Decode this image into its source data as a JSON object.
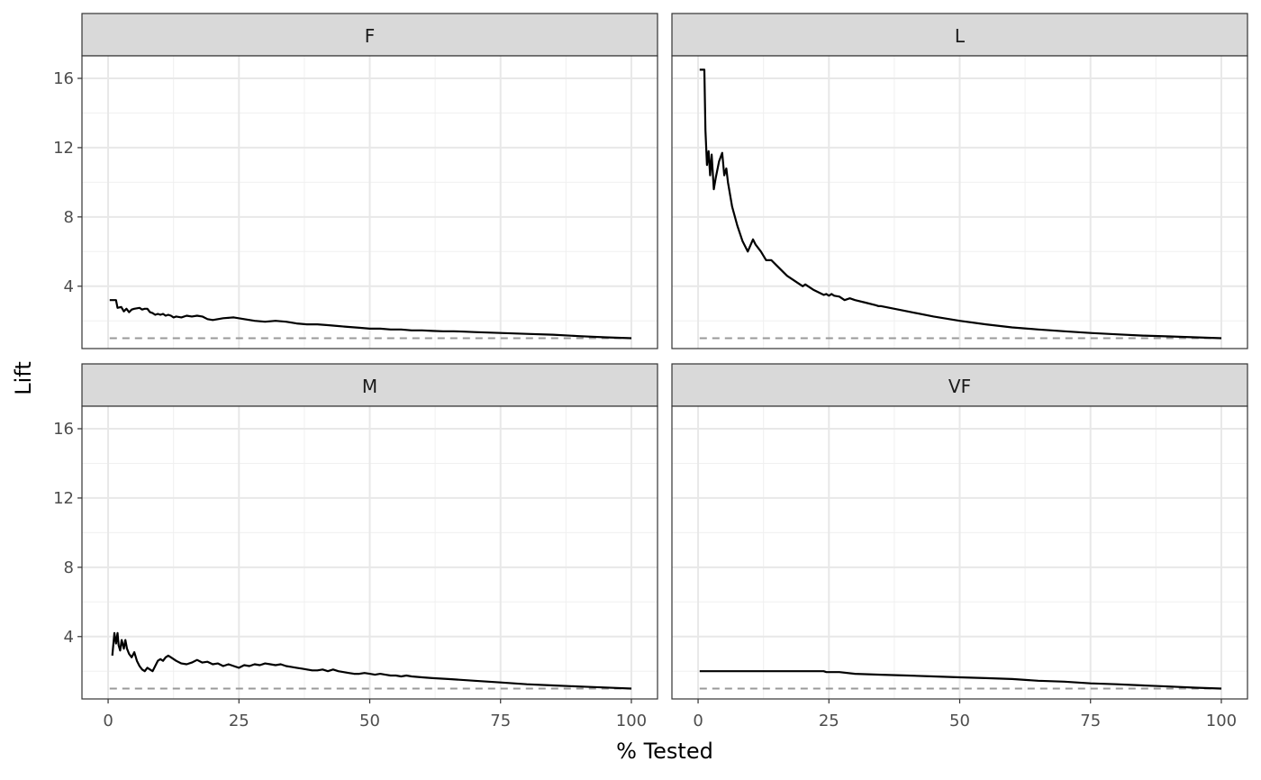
{
  "chart_data": {
    "type": "line",
    "layout": "facet-grid-2x2",
    "xlabel": "% Tested",
    "ylabel": "Lift",
    "xlim": [
      -5,
      105
    ],
    "ylim": [
      0.4,
      17.3
    ],
    "x_ticks": [
      0,
      25,
      50,
      75,
      100
    ],
    "x_tick_labels": [
      "0",
      "25",
      "50",
      "75",
      "100"
    ],
    "y_ticks": [
      4,
      8,
      12,
      16
    ],
    "y_tick_labels": [
      "4",
      "8",
      "12",
      "16"
    ],
    "grid": true,
    "baseline": {
      "y": 1,
      "style": "dashed",
      "color": "#999999"
    },
    "line_color": "#000000",
    "panels": [
      {
        "label": "F",
        "x": [
          0.3,
          1.5,
          1.8,
          2.5,
          3.0,
          3.5,
          4.0,
          4.5,
          5.0,
          6.0,
          6.5,
          7.0,
          7.5,
          8.0,
          8.5,
          9.0,
          9.5,
          10,
          10.5,
          11,
          11.5,
          12,
          12.5,
          13,
          14,
          15,
          16,
          17,
          18,
          19,
          20,
          22,
          24,
          26,
          28,
          30,
          32,
          34,
          36,
          38,
          40,
          42,
          44,
          46,
          48,
          50,
          52,
          54,
          56,
          58,
          60,
          62,
          64,
          66,
          68,
          70,
          75,
          80,
          85,
          90,
          95,
          100
        ],
        "y": [
          3.2,
          3.2,
          2.75,
          2.8,
          2.55,
          2.7,
          2.5,
          2.65,
          2.7,
          2.75,
          2.65,
          2.7,
          2.7,
          2.5,
          2.45,
          2.35,
          2.4,
          2.35,
          2.4,
          2.3,
          2.35,
          2.3,
          2.2,
          2.25,
          2.2,
          2.3,
          2.25,
          2.3,
          2.25,
          2.1,
          2.05,
          2.15,
          2.2,
          2.1,
          2.0,
          1.95,
          2.0,
          1.95,
          1.85,
          1.8,
          1.8,
          1.75,
          1.7,
          1.65,
          1.6,
          1.55,
          1.55,
          1.5,
          1.5,
          1.45,
          1.45,
          1.42,
          1.4,
          1.4,
          1.38,
          1.35,
          1.3,
          1.25,
          1.2,
          1.12,
          1.05,
          1.0
        ]
      },
      {
        "label": "L",
        "x": [
          0.3,
          1.2,
          1.4,
          1.7,
          2.0,
          2.3,
          2.6,
          3.0,
          3.4,
          4.0,
          4.6,
          5.0,
          5.4,
          5.7,
          6.5,
          7.5,
          8.5,
          9.5,
          10.5,
          11,
          12,
          13,
          14,
          15,
          17,
          20,
          20.5,
          22,
          24,
          24.5,
          25,
          25.5,
          26,
          27,
          28,
          29,
          30,
          32,
          34,
          34.5,
          35,
          40,
          45,
          50,
          55,
          60,
          65,
          70,
          75,
          80,
          85,
          90,
          95,
          100
        ],
        "y": [
          16.5,
          16.5,
          13.0,
          11.0,
          11.8,
          10.4,
          11.6,
          9.6,
          10.3,
          11.2,
          11.7,
          10.4,
          10.8,
          10.0,
          8.6,
          7.5,
          6.6,
          6.0,
          6.7,
          6.4,
          6.0,
          5.5,
          5.5,
          5.2,
          4.6,
          4.0,
          4.1,
          3.8,
          3.5,
          3.55,
          3.45,
          3.55,
          3.45,
          3.4,
          3.2,
          3.3,
          3.2,
          3.05,
          2.9,
          2.85,
          2.85,
          2.55,
          2.25,
          2.0,
          1.8,
          1.62,
          1.5,
          1.4,
          1.3,
          1.22,
          1.15,
          1.1,
          1.05,
          1.0
        ]
      },
      {
        "label": "M",
        "x": [
          0.8,
          1.2,
          1.5,
          1.8,
          2.0,
          2.3,
          2.6,
          3.0,
          3.3,
          3.6,
          4.0,
          4.5,
          5.0,
          5.5,
          6.0,
          6.5,
          7.0,
          7.5,
          8.0,
          8.5,
          9.0,
          9.5,
          10,
          10.5,
          11,
          11.5,
          12,
          13,
          14,
          15,
          16,
          17,
          18,
          19,
          20,
          21,
          22,
          23,
          24,
          25,
          26,
          27,
          28,
          29,
          30,
          31,
          32,
          33,
          34,
          35,
          36,
          37,
          38,
          39,
          40,
          41,
          42,
          43,
          44,
          45,
          46,
          47,
          48,
          49,
          50,
          51,
          52,
          53,
          54,
          55,
          56,
          57,
          58,
          60,
          62,
          65,
          70,
          75,
          80,
          85,
          90,
          95,
          100
        ],
        "y": [
          2.9,
          4.2,
          3.6,
          4.2,
          3.5,
          3.2,
          3.8,
          3.3,
          3.8,
          3.3,
          3.0,
          2.8,
          3.1,
          2.6,
          2.3,
          2.1,
          2.0,
          2.2,
          2.1,
          2.0,
          2.3,
          2.6,
          2.7,
          2.6,
          2.8,
          2.9,
          2.8,
          2.6,
          2.45,
          2.4,
          2.5,
          2.65,
          2.5,
          2.55,
          2.4,
          2.45,
          2.3,
          2.4,
          2.3,
          2.2,
          2.35,
          2.3,
          2.4,
          2.35,
          2.45,
          2.4,
          2.35,
          2.4,
          2.3,
          2.25,
          2.2,
          2.15,
          2.1,
          2.05,
          2.05,
          2.1,
          2.0,
          2.1,
          2.0,
          1.95,
          1.9,
          1.85,
          1.85,
          1.9,
          1.85,
          1.8,
          1.85,
          1.8,
          1.75,
          1.75,
          1.7,
          1.75,
          1.7,
          1.65,
          1.6,
          1.55,
          1.45,
          1.35,
          1.25,
          1.18,
          1.12,
          1.06,
          1.0
        ]
      },
      {
        "label": "VF",
        "x": [
          0.3,
          5,
          10,
          15,
          20,
          24,
          24.5,
          25,
          27,
          30,
          35,
          40,
          45,
          50,
          55,
          60,
          65,
          70,
          75,
          80,
          85,
          90,
          95,
          100
        ],
        "y": [
          2.0,
          2.0,
          2.0,
          2.0,
          2.0,
          2.0,
          1.95,
          1.95,
          1.95,
          1.85,
          1.8,
          1.75,
          1.7,
          1.65,
          1.6,
          1.55,
          1.45,
          1.4,
          1.3,
          1.25,
          1.18,
          1.12,
          1.05,
          1.0
        ]
      }
    ]
  }
}
